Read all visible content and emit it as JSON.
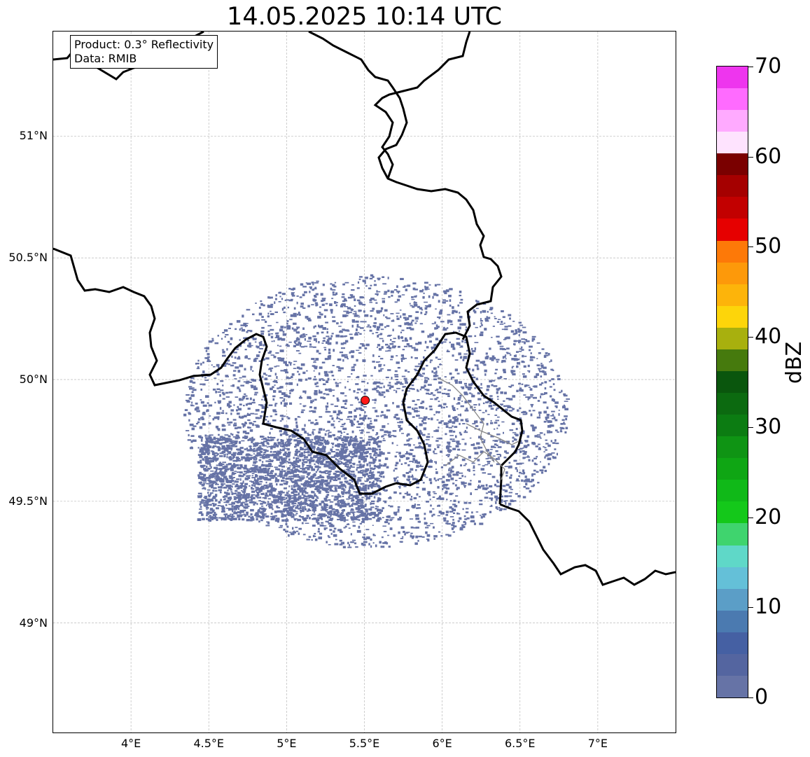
{
  "title": "14.05.2025 10:14 UTC",
  "info": {
    "product": "Product: 0.3° Reflectivity",
    "data": "Data: RMIB"
  },
  "axes": {
    "lon_range": [
      3.5,
      7.5
    ],
    "lat_range": [
      48.55,
      51.43
    ],
    "x_ticks": [
      "4°E",
      "4.5°E",
      "5°E",
      "5.5°E",
      "6°E",
      "6.5°E",
      "7°E"
    ],
    "y_ticks": [
      "51°N",
      "50.5°N",
      "50°N",
      "49.5°N",
      "49°N"
    ],
    "grid": true
  },
  "radar_site": {
    "lon": 5.505,
    "lat": 49.915,
    "color": "#ff1a1a"
  },
  "echo_color": "#6673a6",
  "colorbar": {
    "label": "dBZ",
    "min": 0,
    "max": 70,
    "tick_labels": [
      "70",
      "60",
      "50",
      "40",
      "30",
      "20",
      "10",
      "0"
    ],
    "colors": [
      "#6673a6",
      "#5465a0",
      "#4560a3",
      "#4b7ab0",
      "#5b9ec7",
      "#64c0d8",
      "#5fd8c8",
      "#3fd46e",
      "#14c81a",
      "#10b918",
      "#0fa614",
      "#0f9414",
      "#0c7c12",
      "#0c6a10",
      "#0a560d",
      "#467a0d",
      "#a8b00e",
      "#fdd50a",
      "#fdb40a",
      "#fd990a",
      "#fd7908",
      "#e60000",
      "#c20000",
      "#a50000",
      "#7a0000",
      "#fee3fe",
      "#ffaaff",
      "#ff6bff",
      "#ee35ee"
    ]
  }
}
